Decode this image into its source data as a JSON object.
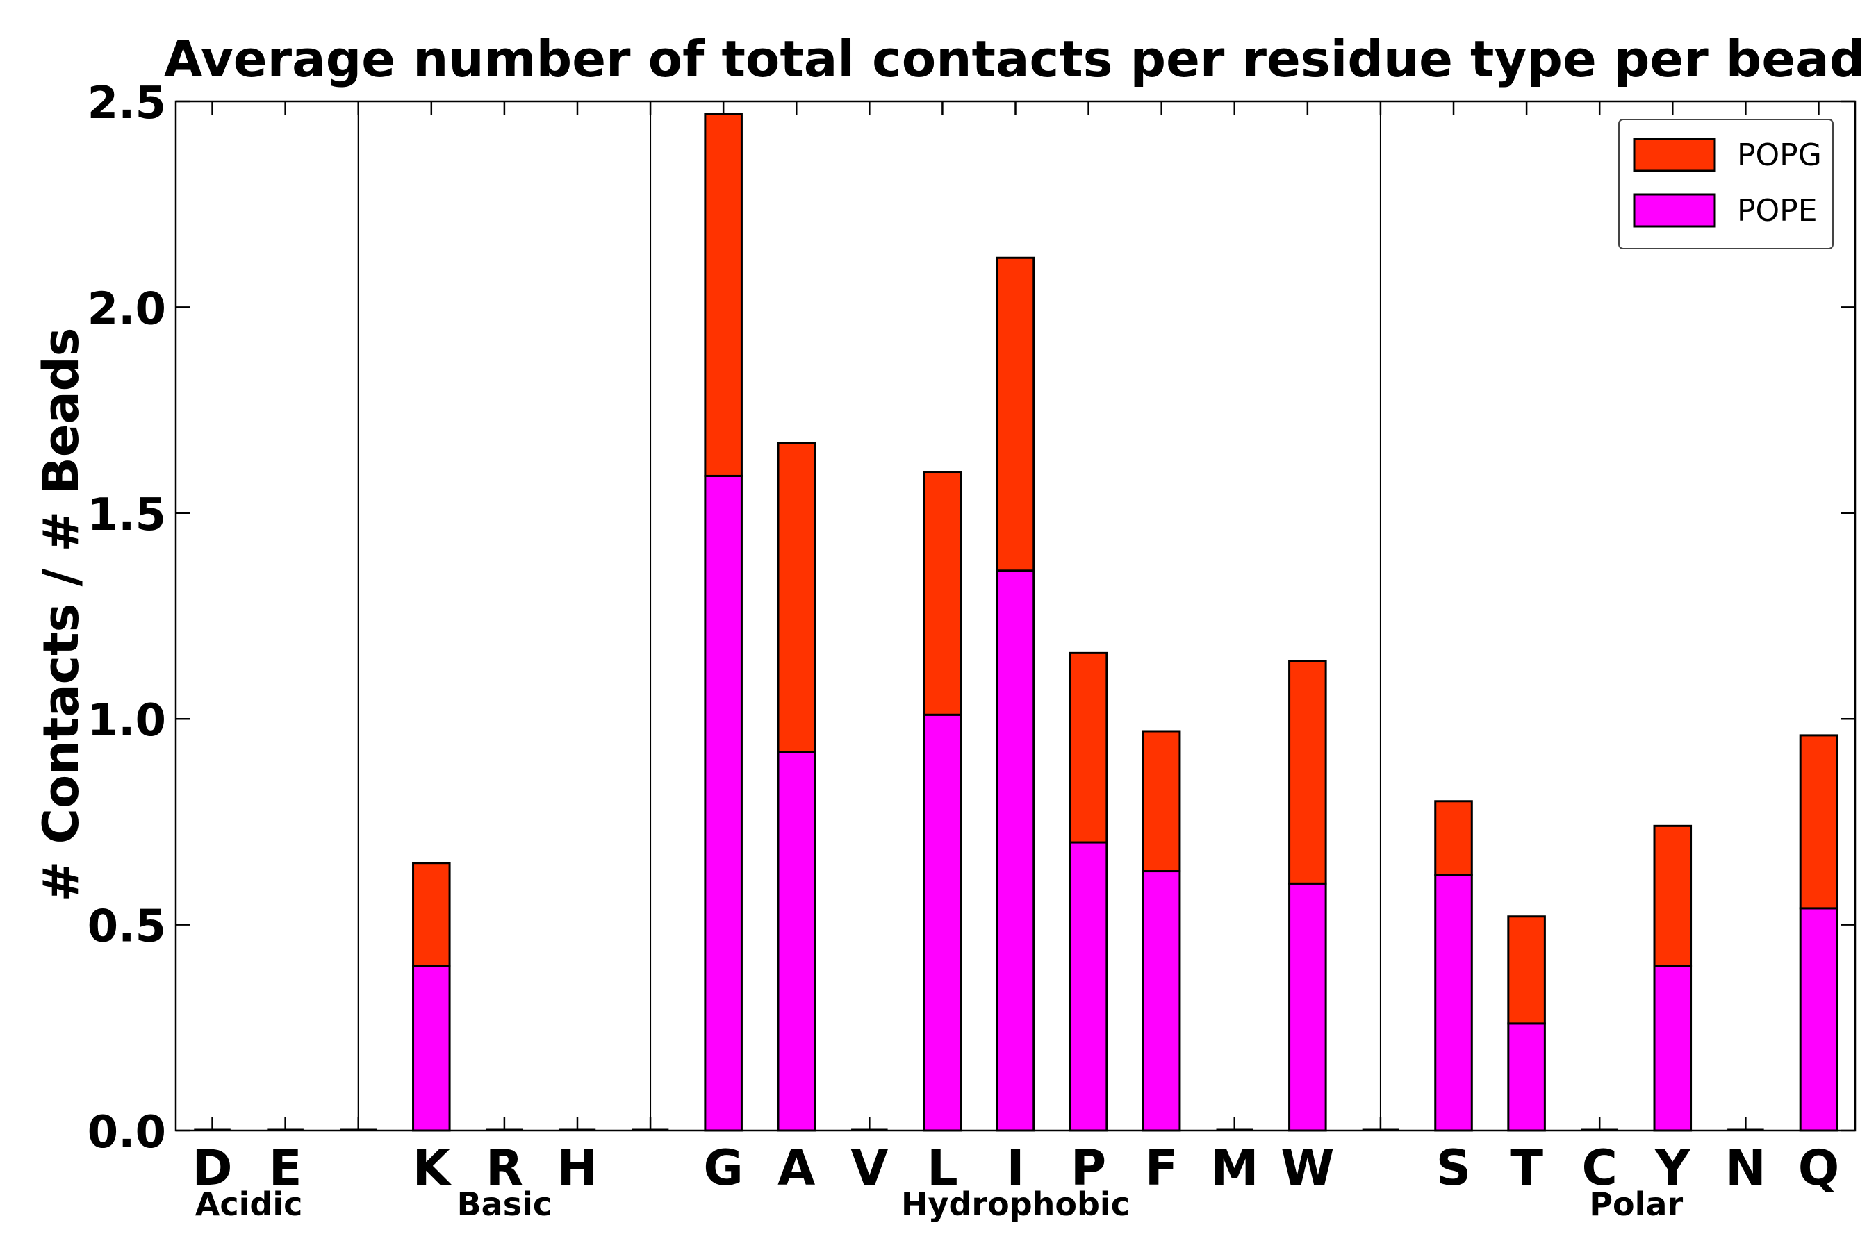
{
  "chart_data": {
    "type": "bar",
    "stacked": true,
    "title": "Average number of total contacts per residue type per bead",
    "xlabel": "",
    "ylabel": "# Contacts / # Beads",
    "ylim": [
      0,
      2.5
    ],
    "yticks": [
      "0.0",
      "0.5",
      "1.0",
      "1.5",
      "2.0",
      "2.5"
    ],
    "categories": [
      "D",
      "E",
      "",
      "K",
      "R",
      "H",
      "",
      "G",
      "A",
      "V",
      "L",
      "I",
      "P",
      "F",
      "M",
      "W",
      "",
      "S",
      "T",
      "C",
      "Y",
      "N",
      "Q"
    ],
    "groups": [
      {
        "label": "Acidic",
        "start": 0,
        "end": 1
      },
      {
        "label": "Basic",
        "start": 3,
        "end": 5
      },
      {
        "label": "Hydrophobic",
        "start": 7,
        "end": 15
      },
      {
        "label": "Polar",
        "start": 17,
        "end": 22
      }
    ],
    "separators_after": [
      2,
      6,
      16
    ],
    "series": [
      {
        "name": "POPE",
        "color": "#ff00ff",
        "values": [
          0,
          0,
          0,
          0.4,
          0,
          0,
          0,
          1.59,
          0.92,
          0,
          1.01,
          1.36,
          0.7,
          0.63,
          0,
          0.6,
          0,
          0.62,
          0.26,
          0,
          0.4,
          0,
          0.54
        ]
      },
      {
        "name": "POPG",
        "color": "#ff3300",
        "values": [
          0,
          0,
          0,
          0.25,
          0,
          0,
          0,
          0.88,
          0.75,
          0,
          0.59,
          0.76,
          0.46,
          0.34,
          0,
          0.54,
          0,
          0.18,
          0.26,
          0,
          0.34,
          0,
          0.42
        ]
      }
    ],
    "legend": {
      "position": "top-right",
      "entries": [
        "POPG",
        "POPE"
      ]
    },
    "grid": false
  }
}
